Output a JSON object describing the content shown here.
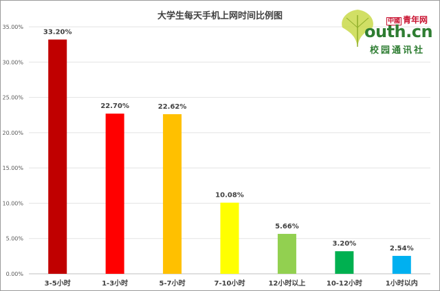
{
  "chart_data": {
    "type": "bar",
    "title": "大学生每天手机上网时间比例图",
    "categories": [
      "3-5小时",
      "1-3小时",
      "5-7小时",
      "7-10小时",
      "12小时以上",
      "10-12小时",
      "1小时以内"
    ],
    "values": [
      33.2,
      22.7,
      22.62,
      10.08,
      5.66,
      3.2,
      2.54
    ],
    "data_labels": [
      "33.20%",
      "22.70%",
      "22.62%",
      "10.08%",
      "5.66%",
      "3.20%",
      "2.54%"
    ],
    "colors": [
      "#c00000",
      "#ff0000",
      "#ffc000",
      "#ffff00",
      "#92d050",
      "#00b050",
      "#00b0f0"
    ],
    "yticks": [
      "0.00%",
      "5.00%",
      "10.00%",
      "15.00%",
      "20.00%",
      "25.00%",
      "30.00%",
      "35.00%"
    ],
    "ylim": [
      0,
      35
    ],
    "grid": true,
    "xlabel": "",
    "ylabel": ""
  },
  "logo": {
    "cn_box": "中國",
    "cn_name": "青年网",
    "web": "outh.cn",
    "bottom": "校园通讯社"
  }
}
